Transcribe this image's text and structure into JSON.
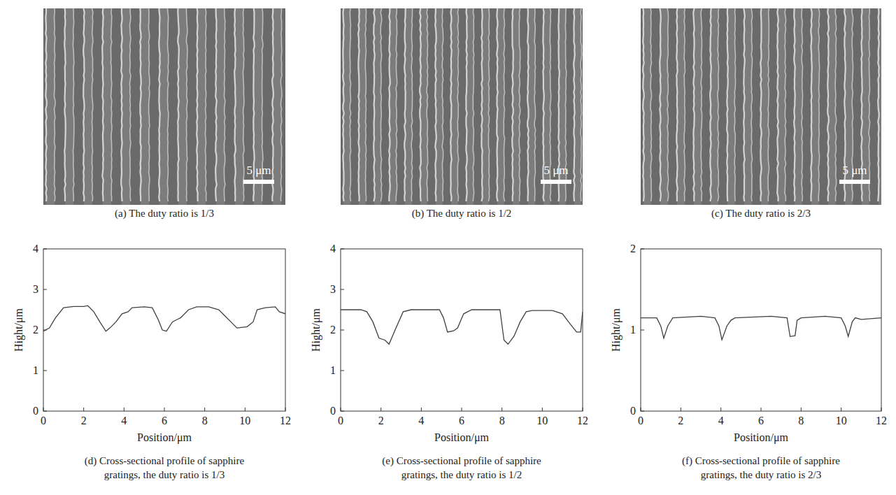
{
  "images": [
    {
      "caption": "(a) The duty ratio is 1/3",
      "scale_bar": "5 μm"
    },
    {
      "caption": "(b) The duty ratio is 1/2",
      "scale_bar": "5 μm"
    },
    {
      "caption": "(c) The duty ratio is 2/3",
      "scale_bar": "5 μm"
    }
  ],
  "chart_data": [
    {
      "type": "line",
      "title": "(d) Cross-sectional profile of sapphire gratings, the duty ratio is 1/3",
      "x_label": "Position/μm",
      "y_label": "Hight/μm",
      "color": "#404040",
      "x": [
        0,
        0.3,
        0.6,
        1.0,
        1.5,
        2.0,
        2.2,
        2.5,
        2.8,
        3.1,
        3.3,
        3.6,
        3.9,
        4.2,
        4.4,
        5.0,
        5.4,
        5.7,
        5.9,
        6.1,
        6.4,
        6.8,
        7.2,
        7.6,
        8.2,
        8.7,
        9.0,
        9.3,
        9.6,
        10.1,
        10.4,
        10.6,
        11.0,
        11.5,
        11.7,
        12
      ],
      "values": [
        1.97,
        2.05,
        2.3,
        2.55,
        2.58,
        2.58,
        2.6,
        2.45,
        2.2,
        1.97,
        2.05,
        2.2,
        2.4,
        2.45,
        2.55,
        2.57,
        2.55,
        2.25,
        2.0,
        1.97,
        2.2,
        2.3,
        2.5,
        2.57,
        2.57,
        2.5,
        2.35,
        2.2,
        2.05,
        2.08,
        2.2,
        2.5,
        2.55,
        2.57,
        2.45,
        2.4
      ],
      "xlim": [
        0,
        12
      ],
      "xticks": [
        0,
        2,
        4,
        6,
        8,
        10,
        12
      ],
      "ylim": [
        0,
        4
      ],
      "yticks": [
        0,
        1,
        2,
        3,
        4
      ]
    },
    {
      "type": "line",
      "title": "(e) Cross-sectional profile of sapphire gratings, the duty ratio is 1/2",
      "x_label": "Position/μm",
      "y_label": "Hight/μm",
      "color": "#404040",
      "x": [
        0,
        1.0,
        1.3,
        1.6,
        1.9,
        2.2,
        2.4,
        2.7,
        3.1,
        3.5,
        4.5,
        4.9,
        5.1,
        5.3,
        5.6,
        5.8,
        6.1,
        6.5,
        7.5,
        7.9,
        8.1,
        8.3,
        8.6,
        8.9,
        9.2,
        9.5,
        10.5,
        11.0,
        11.3,
        11.7,
        11.9,
        12
      ],
      "values": [
        2.5,
        2.5,
        2.45,
        2.2,
        1.8,
        1.75,
        1.65,
        2.0,
        2.45,
        2.5,
        2.5,
        2.5,
        2.3,
        1.95,
        1.98,
        2.05,
        2.4,
        2.5,
        2.5,
        2.5,
        1.75,
        1.65,
        1.85,
        2.2,
        2.45,
        2.48,
        2.48,
        2.4,
        2.2,
        1.95,
        1.95,
        2.45
      ],
      "xlim": [
        0,
        12
      ],
      "xticks": [
        0,
        2,
        4,
        6,
        8,
        10,
        12
      ],
      "ylim": [
        0,
        4
      ],
      "yticks": [
        0,
        1,
        2,
        3,
        4
      ]
    },
    {
      "type": "line",
      "title": "(f) Cross-sectional profile of sapphire gratings, the duty ratio is 2/3",
      "x_label": "Position/μm",
      "y_label": "Hight/μm",
      "color": "#404040",
      "x": [
        0,
        0.8,
        1.0,
        1.15,
        1.35,
        1.6,
        3.0,
        3.7,
        3.9,
        4.05,
        4.3,
        4.5,
        4.7,
        6.5,
        7.3,
        7.45,
        7.7,
        7.8,
        8.0,
        9.2,
        10.0,
        10.2,
        10.35,
        10.55,
        10.7,
        11.0,
        12
      ],
      "values": [
        1.15,
        1.15,
        1.05,
        0.9,
        1.05,
        1.15,
        1.17,
        1.15,
        1.05,
        0.88,
        1.05,
        1.12,
        1.15,
        1.17,
        1.15,
        0.92,
        0.93,
        1.12,
        1.15,
        1.17,
        1.15,
        1.05,
        0.92,
        1.1,
        1.15,
        1.13,
        1.15
      ],
      "xlim": [
        0,
        12
      ],
      "xticks": [
        0,
        2,
        4,
        6,
        8,
        10,
        12
      ],
      "ylim": [
        0,
        2
      ],
      "yticks": [
        0,
        1,
        2
      ]
    }
  ]
}
